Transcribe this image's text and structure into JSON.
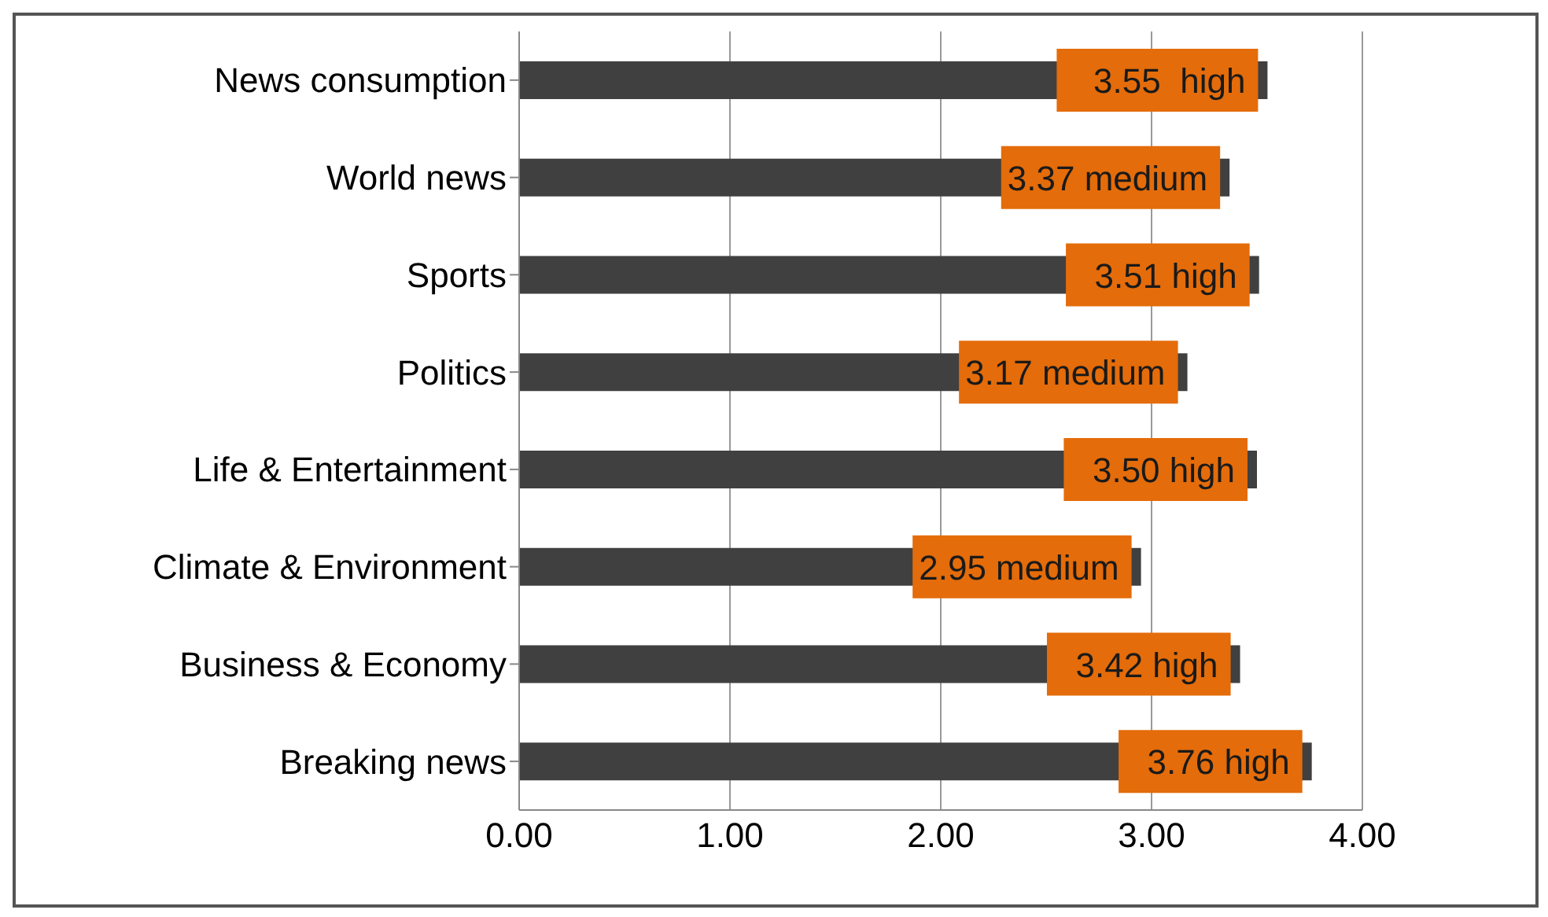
{
  "chart_data": {
    "type": "bar",
    "orientation": "horizontal",
    "categories": [
      "News consumption",
      "World news",
      "Sports",
      "Politics",
      "Life & Entertainment",
      "Climate & Environment",
      "Business & Economy",
      "Breaking news"
    ],
    "values": [
      3.55,
      3.37,
      3.51,
      3.17,
      3.5,
      2.95,
      3.42,
      3.76
    ],
    "value_labels": [
      "3.55  high",
      "3.37 medium",
      "3.51 high",
      "3.17 medium",
      "3.50 high",
      "2.95 medium",
      "3.42 high",
      "3.76 high"
    ],
    "color": "#404040",
    "xlim": [
      0,
      4
    ],
    "xticks": [
      {
        "value": 0,
        "label": "0.00"
      },
      {
        "value": 1,
        "label": "1.00"
      },
      {
        "value": 2,
        "label": "2.00"
      },
      {
        "value": 3,
        "label": "3.00"
      },
      {
        "value": 4,
        "label": "4.00"
      }
    ],
    "grid": "x",
    "legend": false
  }
}
